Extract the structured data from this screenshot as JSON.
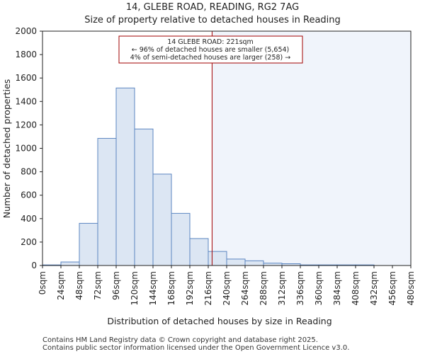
{
  "chart_data": {
    "type": "bar",
    "title": "14, GLEBE ROAD, READING, RG2 7AG",
    "subtitle": "Size of property relative to detached houses in Reading",
    "xlabel": "Distribution of detached houses by size in Reading",
    "ylabel": "Number of detached properties",
    "bin_edges": [
      0,
      24,
      48,
      72,
      96,
      120,
      144,
      168,
      192,
      216,
      240,
      264,
      288,
      312,
      336,
      360,
      384,
      408,
      432,
      456,
      480
    ],
    "x_tick_labels": [
      "0sqm",
      "24sqm",
      "48sqm",
      "72sqm",
      "96sqm",
      "120sqm",
      "144sqm",
      "168sqm",
      "192sqm",
      "216sqm",
      "240sqm",
      "264sqm",
      "288sqm",
      "312sqm",
      "336sqm",
      "360sqm",
      "384sqm",
      "408sqm",
      "432sqm",
      "456sqm",
      "480sqm"
    ],
    "values": [
      5,
      30,
      360,
      1085,
      1515,
      1165,
      780,
      445,
      230,
      120,
      55,
      40,
      20,
      15,
      5,
      5,
      5,
      5,
      0,
      0
    ],
    "ylim": [
      0,
      2000
    ],
    "y_ticks": [
      0,
      200,
      400,
      600,
      800,
      1000,
      1200,
      1400,
      1600,
      1800,
      2000
    ],
    "xlim": [
      0,
      480
    ],
    "grid": false,
    "property_value": 221,
    "bar_color": "#dce6f3",
    "bar_edge_color": "#5b85c0",
    "highlight_color": "#f0f4fb",
    "line_color": "#a00000",
    "annotation": {
      "line1": "14 GLEBE ROAD: 221sqm",
      "line2": "← 96% of detached houses are smaller (5,654)",
      "line3": "4% of semi-detached houses are larger (258) →"
    }
  },
  "footer": {
    "line1": "Contains HM Land Registry data © Crown copyright and database right 2025.",
    "line2": "Contains public sector information licensed under the Open Government Licence v3.0."
  }
}
